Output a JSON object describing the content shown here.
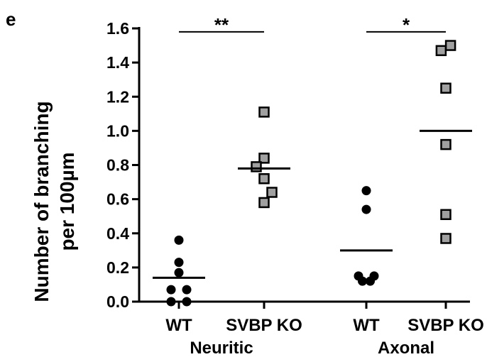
{
  "panel_label": "e",
  "chart_data": {
    "type": "scatter",
    "ylabel_line1": "Number of branching",
    "ylabel_line2": "per 100µm",
    "ylim": [
      0,
      1.6
    ],
    "yticks": [
      "0.0",
      "0.2",
      "0.4",
      "0.6",
      "0.8",
      "1.0",
      "1.2",
      "1.4",
      "1.6"
    ],
    "groups": [
      {
        "label": "Neuritic",
        "categories": [
          "WT",
          "SVBP KO"
        ]
      },
      {
        "label": "Axonal",
        "categories": [
          "WT",
          "SVBP KO"
        ]
      }
    ],
    "series": [
      {
        "group": "Neuritic",
        "category": "WT",
        "marker": "circle",
        "color": "#000000",
        "mean": 0.14,
        "points": [
          [
            0,
            0.36
          ],
          [
            0,
            0.23
          ],
          [
            0,
            0.17
          ],
          [
            -1,
            0.07
          ],
          [
            1,
            0.07
          ],
          [
            -1,
            0.0
          ],
          [
            1,
            0.0
          ]
        ]
      },
      {
        "group": "Neuritic",
        "category": "SVBP KO",
        "marker": "square",
        "color": "#a0a0a0",
        "mean": 0.78,
        "points": [
          [
            0,
            1.11
          ],
          [
            0,
            0.84
          ],
          [
            -1,
            0.79
          ],
          [
            0,
            0.72
          ],
          [
            1,
            0.64
          ],
          [
            0,
            0.58
          ]
        ]
      },
      {
        "group": "Axonal",
        "category": "WT",
        "marker": "circle",
        "color": "#000000",
        "mean": 0.3,
        "points": [
          [
            0,
            0.65
          ],
          [
            0,
            0.54
          ],
          [
            -1,
            0.15
          ],
          [
            1,
            0.15
          ],
          [
            -0.5,
            0.12
          ],
          [
            0.5,
            0.12
          ]
        ]
      },
      {
        "group": "Axonal",
        "category": "SVBP KO",
        "marker": "square",
        "color": "#a0a0a0",
        "mean": 1.0,
        "points": [
          [
            -0.6,
            1.47
          ],
          [
            0.6,
            1.5
          ],
          [
            0,
            1.25
          ],
          [
            0,
            0.92
          ],
          [
            0,
            0.51
          ],
          [
            0,
            0.37
          ]
        ]
      }
    ],
    "significance": [
      {
        "text": "**",
        "group": "Neuritic",
        "y": 1.58
      },
      {
        "text": "*",
        "group": "Axonal",
        "y": 1.58
      }
    ]
  }
}
